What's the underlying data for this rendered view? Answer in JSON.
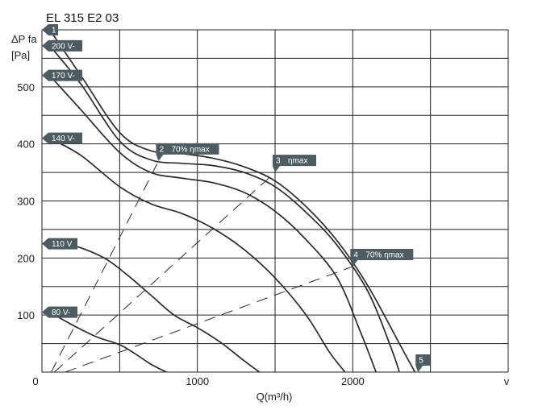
{
  "chart_data": {
    "type": "line",
    "title": "EL 315 E2 03",
    "ylabel_line1": "ΔP fa",
    "ylabel_line2": "[Pa]",
    "xlabel": "Q(m³/h)",
    "x_extra_label": "v",
    "xlim": [
      0,
      3000
    ],
    "ylim": [
      0,
      600
    ],
    "x_ticks": [
      {
        "value": 0,
        "label": "0"
      },
      {
        "value": 1000,
        "label": "1000"
      },
      {
        "value": 2000,
        "label": "2000"
      }
    ],
    "y_ticks": [
      {
        "value": 100,
        "label": "100"
      },
      {
        "value": 200,
        "label": "200"
      },
      {
        "value": 300,
        "label": "300"
      },
      {
        "value": 400,
        "label": "400"
      },
      {
        "value": 500,
        "label": "500"
      }
    ],
    "grid": true,
    "x_grid_step": 500,
    "y_grid_step": 50,
    "series": [
      {
        "name": "1",
        "label_y": 600,
        "points": [
          [
            50,
            600
          ],
          [
            250,
            520
          ],
          [
            500,
            420
          ],
          [
            700,
            388
          ],
          [
            900,
            383
          ],
          [
            1100,
            375
          ],
          [
            1300,
            360
          ],
          [
            1500,
            335
          ],
          [
            1700,
            290
          ],
          [
            1900,
            230
          ],
          [
            2100,
            150
          ],
          [
            2300,
            50
          ],
          [
            2400,
            0
          ]
        ]
      },
      {
        "name": "200 V-",
        "label_y": 572,
        "points": [
          [
            50,
            572
          ],
          [
            250,
            505
          ],
          [
            500,
            405
          ],
          [
            700,
            372
          ],
          [
            900,
            366
          ],
          [
            1100,
            362
          ],
          [
            1300,
            350
          ],
          [
            1500,
            325
          ],
          [
            1700,
            280
          ],
          [
            1900,
            222
          ],
          [
            2100,
            140
          ],
          [
            2250,
            40
          ],
          [
            2300,
            0
          ]
        ]
      },
      {
        "name": "170 V-",
        "label_y": 520,
        "points": [
          [
            50,
            520
          ],
          [
            250,
            460
          ],
          [
            500,
            385
          ],
          [
            700,
            350
          ],
          [
            900,
            340
          ],
          [
            1100,
            332
          ],
          [
            1300,
            315
          ],
          [
            1500,
            282
          ],
          [
            1700,
            232
          ],
          [
            1900,
            165
          ],
          [
            2050,
            70
          ],
          [
            2150,
            0
          ]
        ]
      },
      {
        "name": "140 V-",
        "label_y": 410,
        "points": [
          [
            50,
            410
          ],
          [
            250,
            380
          ],
          [
            500,
            325
          ],
          [
            700,
            295
          ],
          [
            900,
            278
          ],
          [
            1100,
            252
          ],
          [
            1300,
            215
          ],
          [
            1500,
            165
          ],
          [
            1700,
            100
          ],
          [
            1850,
            35
          ],
          [
            1950,
            0
          ]
        ]
      },
      {
        "name": "110 V",
        "label_y": 225,
        "points": [
          [
            50,
            225
          ],
          [
            200,
            222
          ],
          [
            400,
            200
          ],
          [
            550,
            170
          ],
          [
            700,
            135
          ],
          [
            850,
            100
          ],
          [
            1000,
            78
          ],
          [
            1150,
            52
          ],
          [
            1300,
            20
          ],
          [
            1400,
            0
          ]
        ]
      },
      {
        "name": "80 V-",
        "label_y": 105,
        "points": [
          [
            50,
            105
          ],
          [
            200,
            82
          ],
          [
            350,
            62
          ],
          [
            500,
            48
          ],
          [
            600,
            32
          ],
          [
            700,
            14
          ],
          [
            800,
            0
          ]
        ]
      }
    ],
    "efficiency_lines": [
      {
        "name": "2",
        "label": "70% ηmax",
        "points": [
          [
            60,
            0
          ],
          [
            750,
            370
          ]
        ]
      },
      {
        "name": "3",
        "label": "ηmax",
        "points": [
          [
            80,
            0
          ],
          [
            1500,
            350
          ]
        ]
      },
      {
        "name": "4",
        "label": "70% ηmax",
        "points": [
          [
            150,
            0
          ],
          [
            2000,
            185
          ]
        ]
      }
    ],
    "markers": [
      {
        "name": "5",
        "x": 2420,
        "y": 0
      }
    ]
  }
}
